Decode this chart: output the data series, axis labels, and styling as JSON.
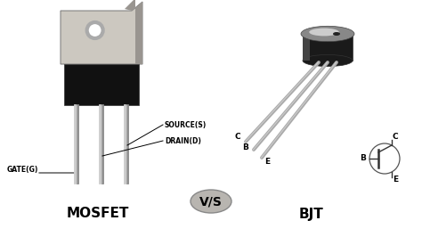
{
  "bg_color": "#ffffff",
  "mosfet_label": "MOSFET",
  "bjt_label": "BJT",
  "vs_label": "V/S",
  "gate_label": "GATE(G)",
  "source_label": "SOURCE(S)",
  "drain_label": "DRAIN(D)",
  "bjt_c_label": "C",
  "bjt_b_label": "B",
  "bjt_e_label": "E",
  "sym_c_label": "C",
  "sym_b_label": "B",
  "sym_e_label": "E",
  "component_label_fontsize": 11,
  "vs_fontsize": 10,
  "annotation_fontsize": 6,
  "mosfet_tab_color": "#ccc8c0",
  "mosfet_tab_dark": "#999590",
  "mosfet_body_color": "#111111",
  "mosfet_leg_color": "#aaaaaa",
  "bjt_body_dark": "#111111",
  "bjt_body_mid": "#666666",
  "bjt_body_light": "#aaaaaa",
  "bjt_leg_color": "#aaaaaa",
  "vs_ellipse_color": "#b8b5b0",
  "vs_ellipse_edge": "#888888"
}
